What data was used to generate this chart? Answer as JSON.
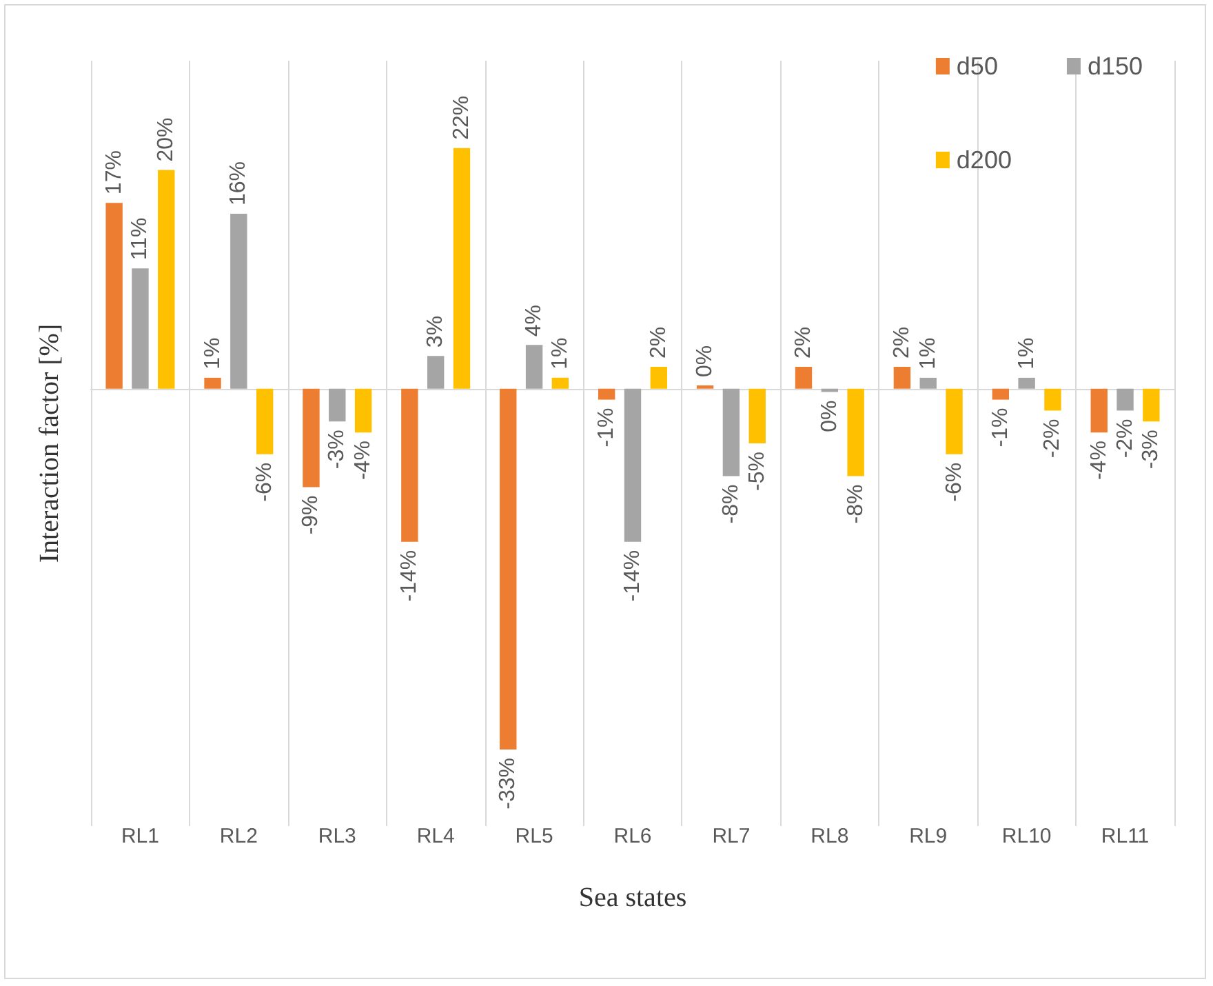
{
  "chart_data": {
    "type": "bar",
    "xlabel": "Sea states",
    "ylabel": "Interaction factor [%]",
    "categories": [
      "RL1",
      "RL2",
      "RL3",
      "RL4",
      "RL5",
      "RL6",
      "RL7",
      "RL8",
      "RL9",
      "RL10",
      "RL11"
    ],
    "series": [
      {
        "name": "d50",
        "color": "#ed7d31",
        "values": [
          17,
          1,
          -9,
          -14,
          -33,
          -1,
          0.3,
          2,
          2,
          -1,
          -4
        ],
        "value_labels": [
          "17%",
          "1%",
          "-9%",
          "-14%",
          "-33%",
          "-1%",
          "0%",
          "2%",
          "2%",
          "-1%",
          "-4%"
        ]
      },
      {
        "name": "d150",
        "color": "#a5a5a5",
        "values": [
          11,
          16,
          -3,
          3,
          4,
          -14,
          -8,
          -0.3,
          1,
          1,
          -2
        ],
        "value_labels": [
          "11%",
          "16%",
          "-3%",
          "3%",
          "4%",
          "-14%",
          "-8%",
          "0%",
          "1%",
          "1%",
          "-2%"
        ]
      },
      {
        "name": "d200",
        "color": "#ffc000",
        "values": [
          20,
          -6,
          -4,
          22,
          1,
          2,
          -5,
          -8,
          -6,
          -2,
          -3
        ],
        "value_labels": [
          "20%",
          "-6%",
          "-4%",
          "22%",
          "1%",
          "2%",
          "-5%",
          "-8%",
          "-6%",
          "-2%",
          "-3%"
        ]
      }
    ],
    "ylim": [
      -40,
      30
    ],
    "tick_labels": "x",
    "grid": "x",
    "legend": "top right"
  }
}
